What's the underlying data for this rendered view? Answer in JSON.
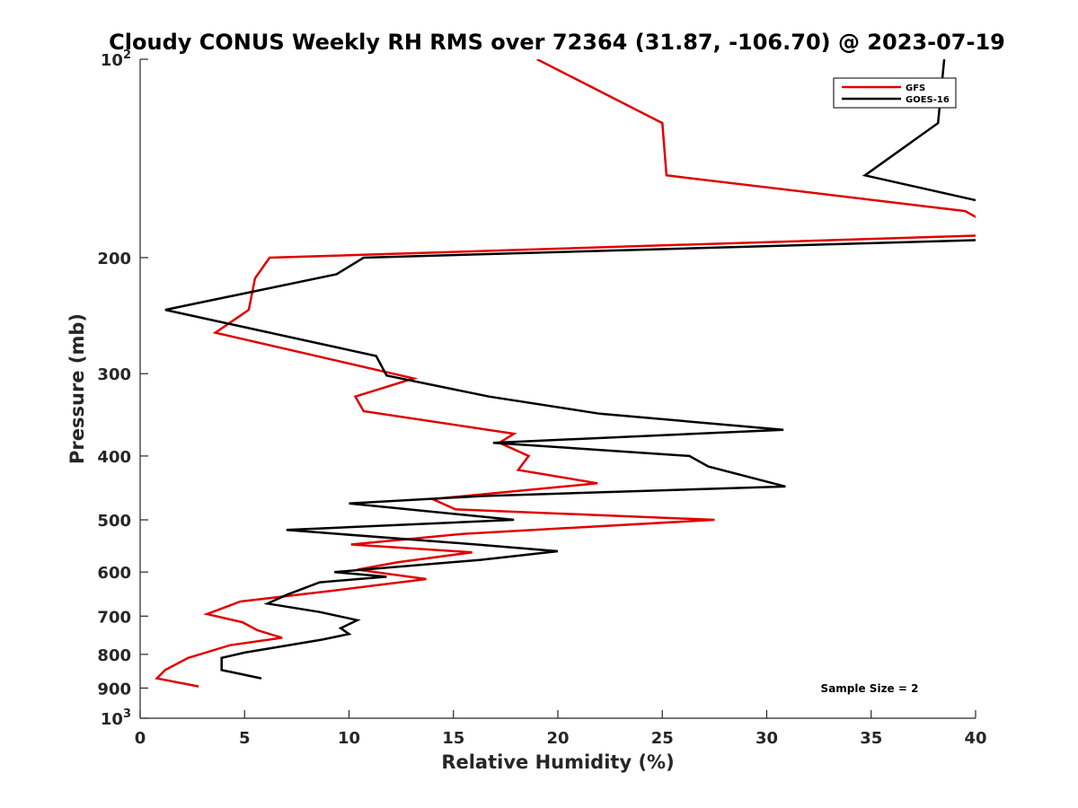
{
  "chart_data": {
    "type": "line",
    "title": "Cloudy CONUS Weekly RH RMS over 72364 (31.87, -106.70) @ 2023-07-19",
    "xlabel": "Relative Humidity (%)",
    "ylabel": "Pressure (mb)",
    "xlim": [
      0,
      40
    ],
    "ylim": [
      100,
      1000
    ],
    "y_scale": "log",
    "y_reversed": true,
    "x_ticks": [
      0,
      5,
      10,
      15,
      20,
      25,
      30,
      35,
      40
    ],
    "y_ticks": [
      {
        "value": 100,
        "label": "10",
        "sup": "2"
      },
      {
        "value": 200,
        "label": "200",
        "sup": ""
      },
      {
        "value": 300,
        "label": "300",
        "sup": ""
      },
      {
        "value": 400,
        "label": "400",
        "sup": ""
      },
      {
        "value": 500,
        "label": "500",
        "sup": ""
      },
      {
        "value": 600,
        "label": "600",
        "sup": ""
      },
      {
        "value": 700,
        "label": "700",
        "sup": ""
      },
      {
        "value": 800,
        "label": "800",
        "sup": ""
      },
      {
        "value": 900,
        "label": "900",
        "sup": ""
      },
      {
        "value": 1000,
        "label": "10",
        "sup": "3"
      }
    ],
    "grid": false,
    "legend_position": "top-right",
    "annotation": "Sample Size = 2",
    "series": [
      {
        "name": "GFS",
        "color": "#e00000",
        "points": [
          [
            19.0,
            100
          ],
          [
            25.0,
            125
          ],
          [
            25.2,
            150
          ],
          [
            39.5,
            170
          ],
          [
            40.5,
            177
          ],
          [
            40.5,
            185
          ],
          [
            6.2,
            200
          ],
          [
            5.5,
            215
          ],
          [
            5.2,
            240
          ],
          [
            3.6,
            260
          ],
          [
            13.1,
            305
          ],
          [
            10.3,
            325
          ],
          [
            10.7,
            342
          ],
          [
            17.9,
            370
          ],
          [
            17.2,
            382
          ],
          [
            18.6,
            400
          ],
          [
            18.1,
            420
          ],
          [
            21.9,
            440
          ],
          [
            14.0,
            465
          ],
          [
            15.1,
            482
          ],
          [
            27.5,
            500
          ],
          [
            15.5,
            525
          ],
          [
            10.1,
            545
          ],
          [
            15.9,
            560
          ],
          [
            12.3,
            580
          ],
          [
            10.4,
            595
          ],
          [
            13.7,
            615
          ],
          [
            9.3,
            640
          ],
          [
            4.8,
            665
          ],
          [
            3.2,
            695
          ],
          [
            4.9,
            715
          ],
          [
            5.6,
            735
          ],
          [
            6.8,
            755
          ],
          [
            4.3,
            775
          ],
          [
            2.3,
            810
          ],
          [
            1.2,
            845
          ],
          [
            0.8,
            870
          ],
          [
            2.8,
            895
          ]
        ]
      },
      {
        "name": "GOES-16",
        "color": "#000000",
        "points": [
          [
            38.5,
            100
          ],
          [
            38.2,
            125
          ],
          [
            34.7,
            150
          ],
          [
            40.5,
            165
          ],
          [
            40.5,
            188
          ],
          [
            10.7,
            200
          ],
          [
            9.4,
            212
          ],
          [
            1.2,
            240
          ],
          [
            11.3,
            282
          ],
          [
            11.8,
            302
          ],
          [
            16.7,
            325
          ],
          [
            22.0,
            345
          ],
          [
            30.8,
            365
          ],
          [
            16.9,
            382
          ],
          [
            26.3,
            400
          ],
          [
            27.2,
            415
          ],
          [
            30.9,
            445
          ],
          [
            16.4,
            460
          ],
          [
            10.0,
            472
          ],
          [
            17.9,
            500
          ],
          [
            7.0,
            518
          ],
          [
            16.1,
            545
          ],
          [
            20.0,
            558
          ],
          [
            16.3,
            575
          ],
          [
            9.3,
            600
          ],
          [
            11.8,
            610
          ],
          [
            8.6,
            622
          ],
          [
            7.0,
            650
          ],
          [
            6.1,
            670
          ],
          [
            8.6,
            690
          ],
          [
            10.4,
            710
          ],
          [
            9.6,
            730
          ],
          [
            10.0,
            745
          ],
          [
            8.7,
            760
          ],
          [
            5.0,
            795
          ],
          [
            3.9,
            810
          ],
          [
            3.9,
            845
          ],
          [
            5.8,
            870
          ]
        ]
      }
    ]
  }
}
